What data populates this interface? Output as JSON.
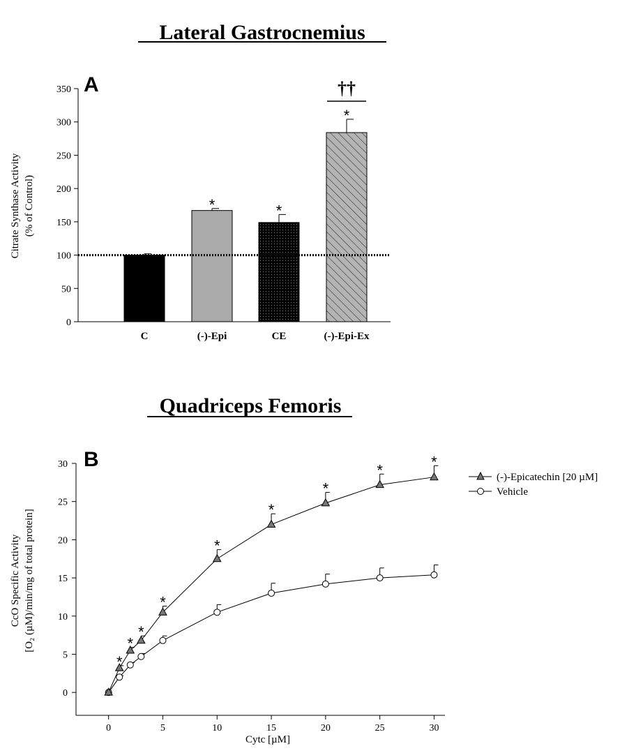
{
  "chart_data": [
    {
      "type": "bar",
      "panel": "A",
      "title": "Lateral Gastrocnemius",
      "ylabel_line1": "Citrate Synthase Activity",
      "ylabel_line2": "(% of Control)",
      "xlabel": "",
      "ylim": [
        0,
        350
      ],
      "yticks": [
        0,
        50,
        100,
        150,
        200,
        250,
        300,
        350
      ],
      "categories": [
        "C",
        "(-)-Epi",
        "CE",
        "(-)-Epi-Ex"
      ],
      "values": [
        100,
        167,
        149,
        284
      ],
      "errors": [
        2,
        3,
        12,
        20
      ],
      "significance": [
        "",
        "*",
        "*",
        "*"
      ],
      "bracket_mark": "††",
      "reference_line": 100,
      "colors": {
        "C": "#000000",
        "Epi": "#aaaaaa",
        "CE": "#111111",
        "EpiEx": "#b0b0b0"
      }
    },
    {
      "type": "line",
      "panel": "B",
      "title": "Quadriceps Femoris",
      "ylabel_line1": "CcO Specific Activity",
      "ylabel_line2": "[O₂ (µM)/min/mg of total protein]",
      "xlabel": "Cytc [µM]",
      "xlim": [
        -3,
        31
      ],
      "ylim": [
        -3,
        30
      ],
      "xticks": [
        0,
        5,
        10,
        15,
        20,
        25,
        30
      ],
      "yticks": [
        0,
        5,
        10,
        15,
        20,
        25,
        30
      ],
      "x": [
        0,
        1,
        2,
        3,
        5,
        10,
        15,
        20,
        25,
        30
      ],
      "series": [
        {
          "name": "(-)-Epicatechin [20 µM]",
          "marker": "triangle",
          "values": [
            0,
            3.2,
            5.5,
            6.8,
            10.5,
            17.5,
            22.0,
            24.8,
            27.2,
            28.2
          ],
          "errors": [
            0,
            0.3,
            0.4,
            0.6,
            0.8,
            1.2,
            1.4,
            1.4,
            1.4,
            1.5
          ],
          "significance": [
            "",
            "*",
            "*",
            "*",
            "*",
            "*",
            "*",
            "*",
            "*",
            "*"
          ]
        },
        {
          "name": "Vehicle",
          "marker": "circle",
          "values": [
            0,
            2.0,
            3.6,
            4.7,
            6.8,
            10.5,
            13.0,
            14.2,
            15.0,
            15.4
          ],
          "errors": [
            0,
            0.2,
            0.3,
            0.4,
            0.6,
            1.0,
            1.3,
            1.3,
            1.3,
            1.3
          ],
          "significance": [
            "",
            "",
            "",
            "",
            "",
            "",
            "",
            "",
            "",
            ""
          ]
        }
      ]
    }
  ]
}
